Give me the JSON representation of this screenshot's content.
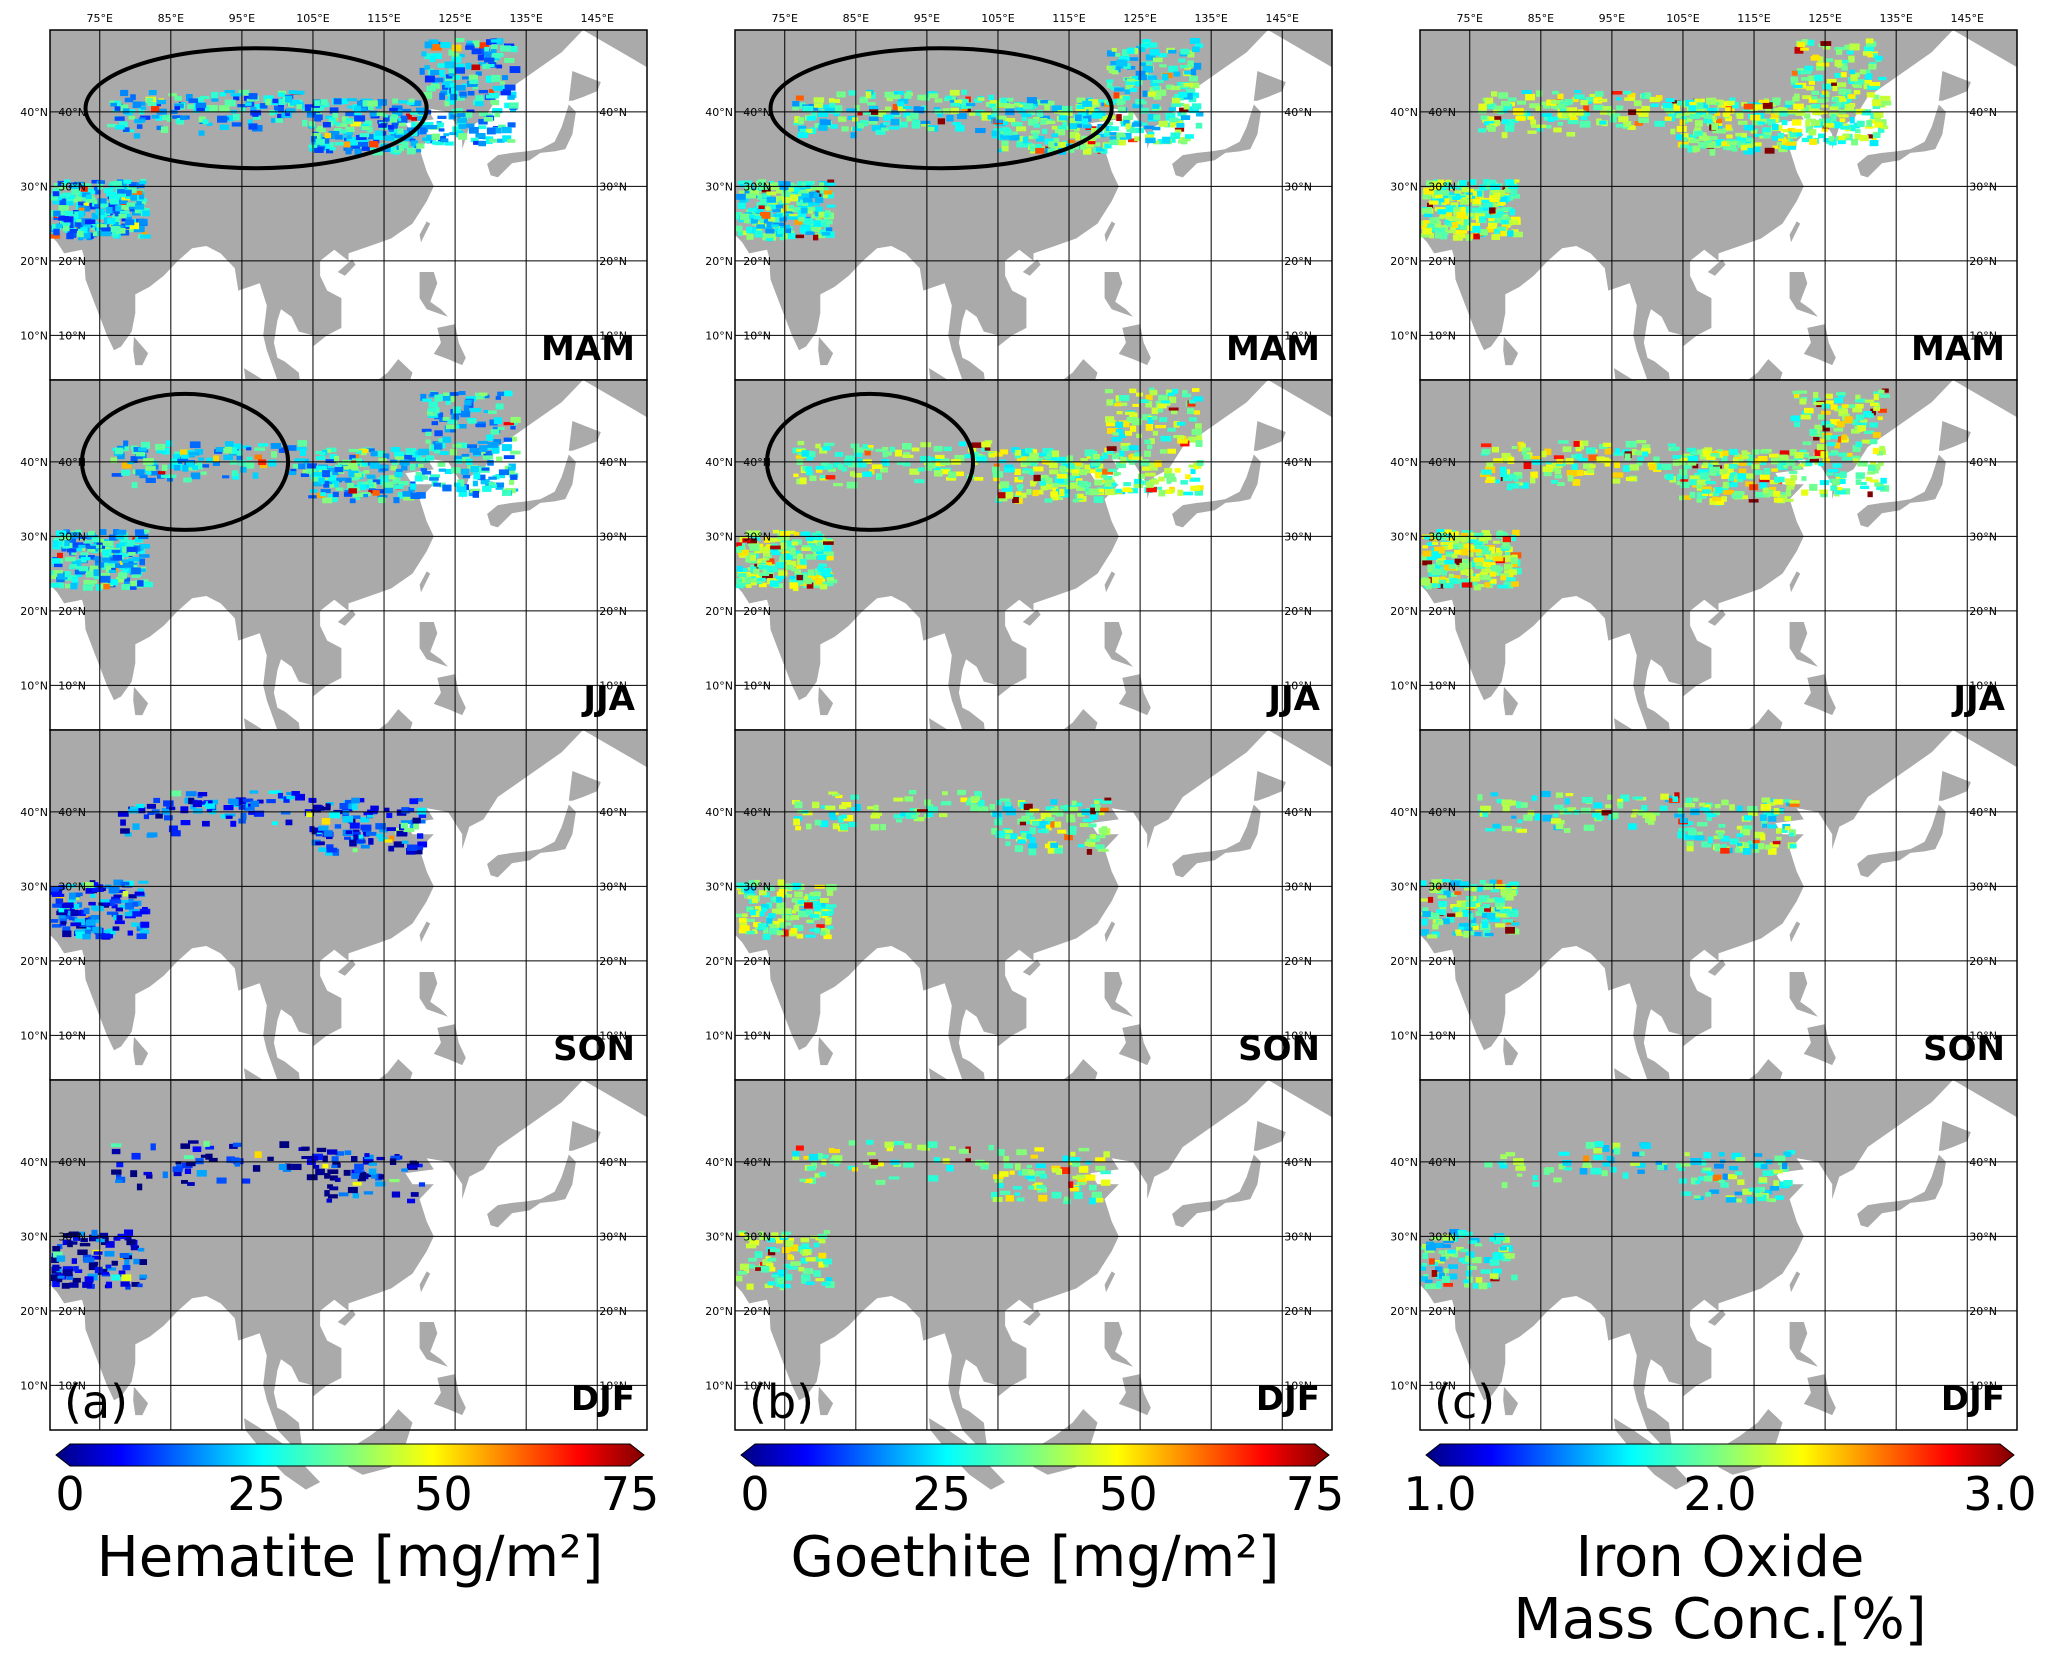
{
  "columns": [
    {
      "panel_label": "(a)",
      "variable": "hematite",
      "colorbar": {
        "ticks": [
          "0",
          "25",
          "50",
          "75"
        ],
        "title_lines": [
          "Hematite [mg/m²]"
        ]
      },
      "ellipse_rows": [
        "MAM",
        "JJA"
      ]
    },
    {
      "panel_label": "(b)",
      "variable": "goethite",
      "colorbar": {
        "ticks": [
          "0",
          "25",
          "50",
          "75"
        ],
        "title_lines": [
          "Goethite [mg/m²]"
        ]
      },
      "ellipse_rows": [
        "MAM",
        "JJA"
      ]
    },
    {
      "panel_label": "(c)",
      "variable": "iron_oxide",
      "colorbar": {
        "ticks": [
          "1.0",
          "2.0",
          "3.0"
        ],
        "title_lines": [
          "Iron Oxide",
          "Mass Conc.[%]"
        ]
      },
      "ellipse_rows": []
    }
  ],
  "seasons": [
    "MAM",
    "JJA",
    "SON",
    "DJF"
  ],
  "lon_labels": [
    "75°E",
    "85°E",
    "95°E",
    "105°E",
    "115°E",
    "125°E",
    "135°E",
    "145°E"
  ],
  "lat_labels": [
    "40°N",
    "30°N",
    "20°N",
    "10°N"
  ],
  "colormap": "jet",
  "colors": {
    "land": "#aaaaaa",
    "ocean": "#ffffff",
    "grid": "#000000"
  }
}
